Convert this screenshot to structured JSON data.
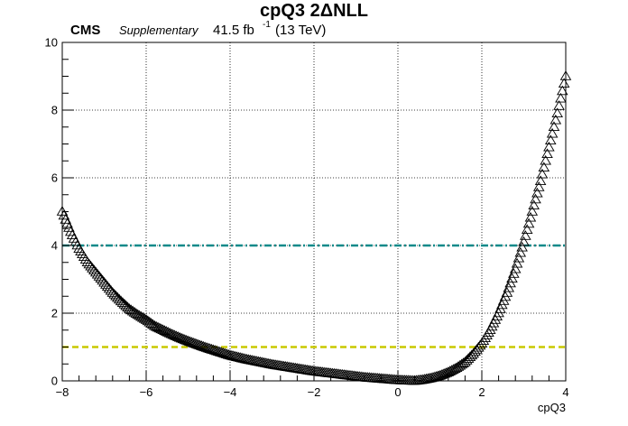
{
  "chart_data": {
    "type": "scatter",
    "title": "cpQ3 2ΔNLL",
    "header": {
      "experiment": "CMS",
      "tag": "Supplementary",
      "lumi_value": "41.5 fb",
      "lumi_exponent": "-1",
      "energy": "(13 TeV)"
    },
    "xlabel": "cpQ3",
    "ylabel": "",
    "xlim": [
      -8,
      4
    ],
    "ylim": [
      0,
      10
    ],
    "grid": true,
    "marker": "open-triangle-up",
    "x_ticks": [
      "−8",
      "−6",
      "−4",
      "−2",
      "0",
      "2",
      "4"
    ],
    "y_ticks": [
      "0",
      "2",
      "4",
      "6",
      "8",
      "10"
    ],
    "reference_lines": [
      {
        "y": 4,
        "color": "#0f8a8a",
        "style": "dash-dot"
      },
      {
        "y": 1,
        "color": "#c8c800",
        "style": "dashed"
      }
    ],
    "series": [
      {
        "points": [
          [
            -8.0,
            5.0
          ],
          [
            -7.8,
            4.4
          ],
          [
            -7.6,
            3.9
          ],
          [
            -7.4,
            3.5
          ],
          [
            -7.2,
            3.2
          ],
          [
            -7.0,
            2.9
          ],
          [
            -6.8,
            2.6
          ],
          [
            -6.6,
            2.35
          ],
          [
            -6.4,
            2.12
          ],
          [
            -6.2,
            1.95
          ],
          [
            -6.0,
            1.8
          ],
          [
            -5.8,
            1.62
          ],
          [
            -5.6,
            1.5
          ],
          [
            -5.4,
            1.38
          ],
          [
            -5.2,
            1.27
          ],
          [
            -5.0,
            1.17
          ],
          [
            -4.8,
            1.08
          ],
          [
            -4.6,
            0.99
          ],
          [
            -4.4,
            0.91
          ],
          [
            -4.2,
            0.83
          ],
          [
            -4.0,
            0.75
          ],
          [
            -3.8,
            0.69
          ],
          [
            -3.6,
            0.63
          ],
          [
            -3.4,
            0.58
          ],
          [
            -3.2,
            0.53
          ],
          [
            -3.0,
            0.48
          ],
          [
            -2.8,
            0.44
          ],
          [
            -2.6,
            0.4
          ],
          [
            -2.4,
            0.36
          ],
          [
            -2.2,
            0.32
          ],
          [
            -2.0,
            0.28
          ],
          [
            -1.8,
            0.25
          ],
          [
            -1.6,
            0.22
          ],
          [
            -1.4,
            0.19
          ],
          [
            -1.2,
            0.16
          ],
          [
            -1.0,
            0.13
          ],
          [
            -0.8,
            0.1
          ],
          [
            -0.6,
            0.08
          ],
          [
            -0.4,
            0.06
          ],
          [
            -0.2,
            0.04
          ],
          [
            0.0,
            0.02
          ],
          [
            0.2,
            0.01
          ],
          [
            0.4,
            0.0
          ],
          [
            0.6,
            0.03
          ],
          [
            0.8,
            0.08
          ],
          [
            1.0,
            0.15
          ],
          [
            1.2,
            0.25
          ],
          [
            1.4,
            0.38
          ],
          [
            1.6,
            0.55
          ],
          [
            1.8,
            0.8
          ],
          [
            2.0,
            1.1
          ],
          [
            2.2,
            1.5
          ],
          [
            2.4,
            2.0
          ],
          [
            2.6,
            2.6
          ],
          [
            2.8,
            3.3
          ],
          [
            3.0,
            4.1
          ],
          [
            3.2,
            5.0
          ],
          [
            3.4,
            5.9
          ],
          [
            3.6,
            6.9
          ],
          [
            3.8,
            7.9
          ],
          [
            4.0,
            9.0
          ]
        ]
      }
    ]
  }
}
